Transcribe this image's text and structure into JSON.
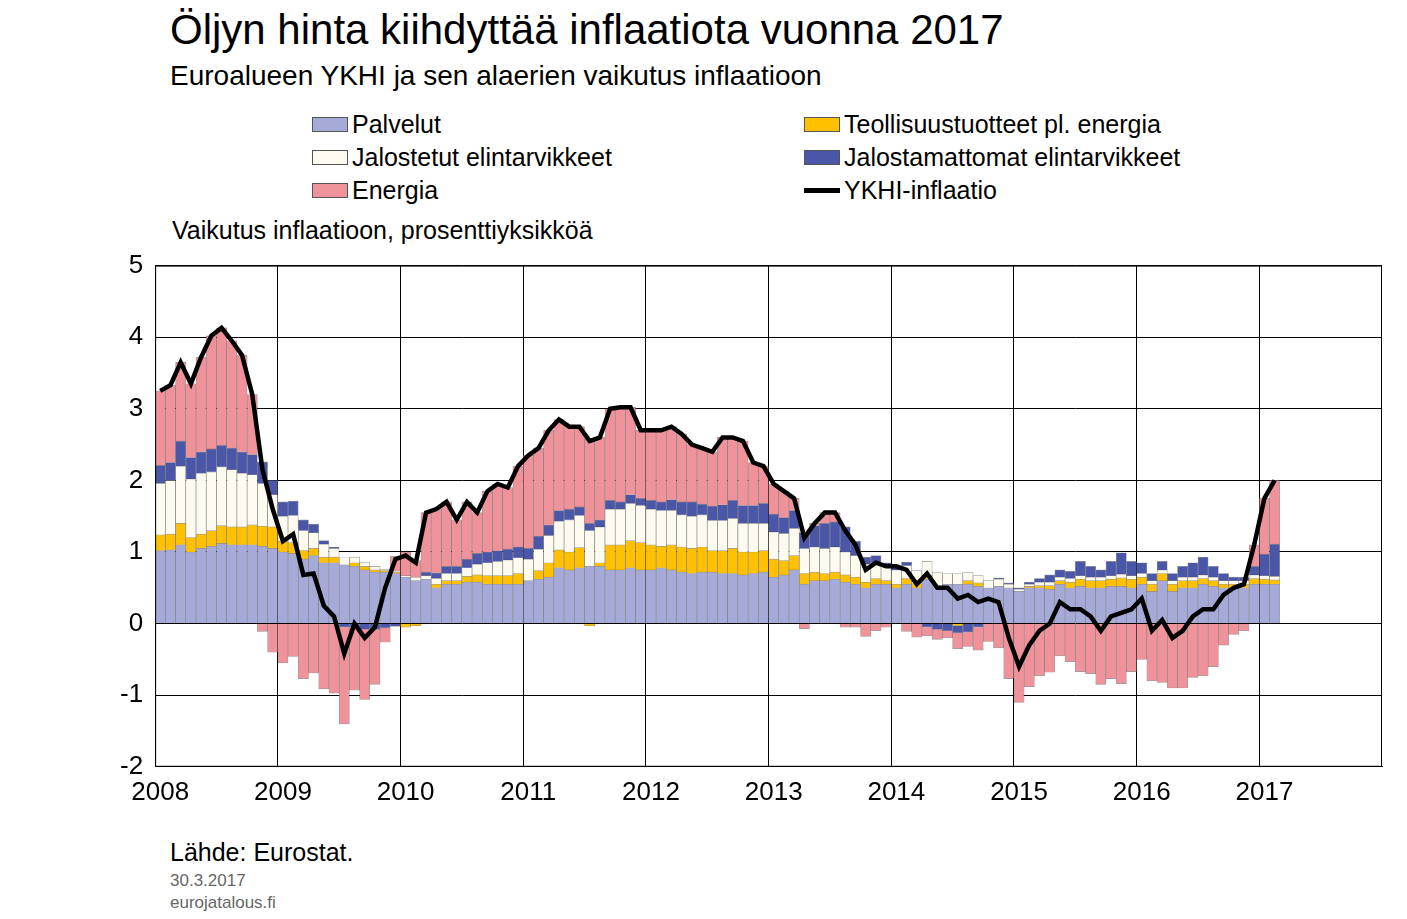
{
  "chart_data": {
    "type": "bar",
    "title": "Öljyn hinta kiihdyttää inflaatiota vuonna 2017",
    "subtitle": "Euroalueen YKHI ja sen alaerien vaikutus inflaatioon",
    "y_label": "Vaikutus inflaatioon, prosenttiyksikköä",
    "source": "Lähde: Eurostat.",
    "notes": [
      "30.3.2017",
      "eurojatalous.fi"
    ],
    "stacked": true,
    "grid": true,
    "legend": "top",
    "ylim": [
      -2,
      5
    ],
    "yticks": [
      -2,
      -1,
      0,
      1,
      2,
      3,
      4,
      5
    ],
    "categories": [
      "2008",
      null,
      null,
      null,
      null,
      null,
      null,
      null,
      null,
      null,
      null,
      null,
      "2009",
      null,
      null,
      null,
      null,
      null,
      null,
      null,
      null,
      null,
      null,
      null,
      "2010",
      null,
      null,
      null,
      null,
      null,
      null,
      null,
      null,
      null,
      null,
      null,
      "2011",
      null,
      null,
      null,
      null,
      null,
      null,
      null,
      null,
      null,
      null,
      null,
      "2012",
      null,
      null,
      null,
      null,
      null,
      null,
      null,
      null,
      null,
      null,
      null,
      "2013",
      null,
      null,
      null,
      null,
      null,
      null,
      null,
      null,
      null,
      null,
      null,
      "2014",
      null,
      null,
      null,
      null,
      null,
      null,
      null,
      null,
      null,
      null,
      null,
      "2015",
      null,
      null,
      null,
      null,
      null,
      null,
      null,
      null,
      null,
      null,
      null,
      "2016",
      null,
      null,
      null,
      null,
      null,
      null,
      null,
      null,
      null,
      null,
      null,
      "2017",
      null,
      null,
      null,
      null,
      null,
      null,
      null,
      null,
      null,
      null,
      null
    ],
    "series": [
      {
        "name": "Palvelut",
        "type": "bar",
        "color": "#a6aad8",
        "values": [
          1.02,
          1.03,
          1.1,
          1.0,
          1.05,
          1.08,
          1.12,
          1.1,
          1.1,
          1.1,
          1.08,
          1.05,
          1.0,
          0.98,
          0.9,
          0.95,
          0.85,
          0.85,
          0.82,
          0.8,
          0.75,
          0.72,
          0.72,
          0.7,
          0.65,
          0.6,
          0.62,
          0.5,
          0.55,
          0.55,
          0.58,
          0.58,
          0.55,
          0.55,
          0.55,
          0.55,
          0.6,
          0.62,
          0.65,
          0.78,
          0.75,
          0.78,
          0.8,
          0.8,
          0.75,
          0.75,
          0.78,
          0.75,
          0.75,
          0.78,
          0.75,
          0.72,
          0.7,
          0.72,
          0.72,
          0.7,
          0.7,
          0.68,
          0.7,
          0.72,
          0.65,
          0.68,
          0.75,
          0.55,
          0.6,
          0.6,
          0.62,
          0.58,
          0.55,
          0.5,
          0.55,
          0.55,
          0.5,
          0.55,
          0.5,
          0.62,
          0.52,
          0.55,
          0.55,
          0.55,
          0.52,
          0.5,
          0.52,
          0.5,
          0.45,
          0.5,
          0.5,
          0.48,
          0.55,
          0.5,
          0.52,
          0.5,
          0.5,
          0.52,
          0.52,
          0.5,
          0.55,
          0.45,
          0.6,
          0.45,
          0.5,
          0.5,
          0.55,
          0.52,
          0.5,
          0.5,
          0.5,
          0.55,
          0.55,
          0.55,
          null,
          null,
          null,
          null,
          null,
          null,
          null,
          null,
          null,
          null
        ]
      },
      {
        "name": "Teollisuustuotteet pl. energia",
        "type": "bar",
        "color": "#ffc000",
        "values": [
          0.22,
          0.22,
          0.3,
          0.2,
          0.2,
          0.22,
          0.25,
          0.25,
          0.25,
          0.28,
          0.28,
          0.3,
          0.15,
          0.15,
          0.12,
          0.1,
          0.08,
          0.08,
          0.0,
          0.05,
          0.05,
          0.03,
          0.02,
          0.02,
          -0.05,
          -0.03,
          0.0,
          0.05,
          0.05,
          0.05,
          0.08,
          0.1,
          0.12,
          0.12,
          0.12,
          0.15,
          0.0,
          0.12,
          0.2,
          0.25,
          0.25,
          0.28,
          -0.03,
          0.05,
          0.35,
          0.35,
          0.38,
          0.38,
          0.35,
          0.3,
          0.35,
          0.35,
          0.35,
          0.35,
          0.3,
          0.32,
          0.35,
          0.32,
          0.3,
          0.3,
          0.25,
          0.2,
          0.2,
          0.15,
          0.12,
          0.1,
          0.1,
          0.1,
          0.1,
          0.08,
          0.08,
          0.05,
          0.05,
          0.08,
          0.06,
          0.05,
          0.0,
          0.0,
          -0.03,
          0.05,
          0.05,
          0.0,
          0.0,
          0.0,
          0.0,
          0.02,
          0.03,
          0.05,
          0.05,
          0.08,
          0.1,
          0.1,
          0.1,
          0.1,
          0.12,
          0.12,
          0.1,
          0.1,
          0.1,
          0.1,
          0.1,
          0.1,
          0.08,
          0.08,
          0.05,
          0.05,
          0.05,
          0.08,
          0.07,
          0.06,
          null,
          null,
          null,
          null,
          null,
          null,
          null,
          null,
          null,
          null
        ]
      },
      {
        "name": "Jalostetut elintarvikkeet",
        "type": "bar",
        "color": "#fdfbf0",
        "values": [
          0.72,
          0.75,
          0.8,
          0.82,
          0.85,
          0.82,
          0.82,
          0.8,
          0.75,
          0.7,
          0.6,
          0.45,
          0.35,
          0.38,
          0.28,
          0.22,
          0.18,
          0.12,
          0.1,
          0.08,
          0.06,
          0.05,
          0.02,
          0.01,
          0.02,
          0.05,
          0.05,
          0.08,
          0.1,
          0.1,
          0.12,
          0.15,
          0.18,
          0.2,
          0.22,
          0.22,
          0.3,
          0.3,
          0.38,
          0.4,
          0.45,
          0.45,
          0.5,
          0.5,
          0.5,
          0.5,
          0.52,
          0.52,
          0.5,
          0.5,
          0.48,
          0.45,
          0.45,
          0.45,
          0.42,
          0.42,
          0.42,
          0.4,
          0.4,
          0.38,
          0.38,
          0.38,
          0.38,
          0.35,
          0.35,
          0.35,
          0.35,
          0.32,
          0.3,
          0.25,
          0.22,
          0.2,
          0.2,
          0.18,
          0.18,
          0.2,
          0.2,
          0.15,
          0.15,
          0.12,
          0.1,
          0.1,
          0.1,
          0.05,
          0.03,
          0.03,
          0.05,
          0.05,
          0.05,
          0.05,
          0.05,
          0.05,
          0.05,
          0.05,
          0.05,
          0.05,
          0.05,
          0.05,
          0.05,
          0.05,
          0.05,
          0.05,
          0.05,
          0.05,
          0.05,
          0.05,
          0.05,
          0.05,
          0.05,
          0.05,
          null,
          null,
          null,
          null,
          null,
          null,
          null,
          null,
          null,
          null
        ]
      },
      {
        "name": "Jalostamattomat elintarvikkeet",
        "type": "bar",
        "color": "#4a57a8",
        "values": [
          0.25,
          0.25,
          0.35,
          0.3,
          0.3,
          0.32,
          0.3,
          0.3,
          0.3,
          0.28,
          0.3,
          0.2,
          0.2,
          0.2,
          0.15,
          0.12,
          0.05,
          0.02,
          -0.05,
          -0.05,
          -0.08,
          -0.08,
          -0.06,
          -0.04,
          0.0,
          0.0,
          0.05,
          0.08,
          0.1,
          0.1,
          0.12,
          0.15,
          0.15,
          0.15,
          0.15,
          0.15,
          0.15,
          0.18,
          0.15,
          0.15,
          0.15,
          0.12,
          0.1,
          0.1,
          0.12,
          0.1,
          0.12,
          0.1,
          0.12,
          0.12,
          0.15,
          0.18,
          0.2,
          0.15,
          0.2,
          0.22,
          0.25,
          0.25,
          0.25,
          0.28,
          0.25,
          0.22,
          0.25,
          0.22,
          0.3,
          0.35,
          0.35,
          0.35,
          0.2,
          0.1,
          0.1,
          0.05,
          0.05,
          0.05,
          0.0,
          -0.05,
          -0.08,
          -0.1,
          -0.1,
          -0.12,
          -0.05,
          0.0,
          0.02,
          0.02,
          0.02,
          0.03,
          0.05,
          0.1,
          0.1,
          0.1,
          0.2,
          0.15,
          0.1,
          0.2,
          0.3,
          0.2,
          0.15,
          0.1,
          0.12,
          0.1,
          0.15,
          0.2,
          0.25,
          0.15,
          0.1,
          0.05,
          0.05,
          0.12,
          0.3,
          0.45,
          null,
          null,
          null,
          null,
          null,
          null,
          null,
          null,
          null,
          null
        ]
      },
      {
        "name": "Energia",
        "type": "bar",
        "color": "#f0929a",
        "values": [
          1.04,
          1.08,
          1.1,
          1.03,
          1.32,
          1.58,
          1.64,
          1.5,
          1.35,
          0.84,
          -0.11,
          -0.4,
          -0.55,
          -0.46,
          -0.77,
          -0.69,
          -0.91,
          -0.97,
          -1.35,
          -0.88,
          -0.98,
          -0.77,
          -0.2,
          0.21,
          0.33,
          0.23,
          0.83,
          0.89,
          0.9,
          0.65,
          0.8,
          0.57,
          0.85,
          0.93,
          0.86,
          1.13,
          1.3,
          1.23,
          1.32,
          1.27,
          1.15,
          1.12,
          1.18,
          1.15,
          1.28,
          1.32,
          1.22,
          0.95,
          0.98,
          1.0,
          1.02,
          0.95,
          0.8,
          0.78,
          0.76,
          0.94,
          0.88,
          0.9,
          0.6,
          0.52,
          0.42,
          0.37,
          0.17,
          -0.07,
          0.03,
          0.15,
          0.13,
          -0.05,
          -0.05,
          -0.18,
          -0.1,
          -0.05,
          0.0,
          -0.11,
          -0.19,
          -0.12,
          -0.14,
          -0.1,
          -0.22,
          -0.2,
          -0.32,
          -0.25,
          -0.34,
          -0.77,
          -1.1,
          -0.88,
          -0.73,
          -0.68,
          -0.45,
          -0.53,
          -0.67,
          -0.7,
          -0.85,
          -0.77,
          -0.84,
          -0.67,
          -0.5,
          -0.8,
          -0.82,
          -0.9,
          -0.9,
          -0.75,
          -0.73,
          -0.6,
          -0.3,
          -0.15,
          -0.1,
          0.3,
          0.78,
          0.89,
          null,
          null,
          null,
          null,
          null,
          null,
          null,
          null,
          null,
          null
        ]
      },
      {
        "name": "YKHI-inflaatio",
        "type": "line",
        "color": "#000000",
        "values": [
          3.25,
          3.33,
          3.65,
          3.35,
          3.72,
          4.02,
          4.13,
          3.95,
          3.75,
          3.2,
          2.15,
          1.6,
          1.15,
          1.25,
          0.68,
          0.7,
          0.25,
          0.1,
          -0.42,
          0.0,
          -0.2,
          -0.05,
          0.5,
          0.9,
          0.95,
          0.85,
          1.55,
          1.6,
          1.7,
          1.45,
          1.7,
          1.55,
          1.85,
          1.95,
          1.9,
          2.2,
          2.35,
          2.45,
          2.7,
          2.85,
          2.75,
          2.75,
          2.55,
          2.6,
          3.0,
          3.02,
          3.02,
          2.7,
          2.7,
          2.7,
          2.75,
          2.65,
          2.5,
          2.45,
          2.4,
          2.6,
          2.6,
          2.55,
          2.25,
          2.2,
          1.95,
          1.85,
          1.75,
          1.2,
          1.4,
          1.55,
          1.55,
          1.3,
          1.1,
          0.75,
          0.85,
          0.8,
          0.8,
          0.75,
          0.55,
          0.7,
          0.5,
          0.5,
          0.35,
          0.4,
          0.3,
          0.35,
          0.3,
          -0.2,
          -0.6,
          -0.3,
          -0.1,
          0.0,
          0.3,
          0.2,
          0.2,
          0.1,
          -0.1,
          0.1,
          0.15,
          0.2,
          0.35,
          -0.1,
          0.05,
          -0.2,
          -0.1,
          0.1,
          0.2,
          0.2,
          0.4,
          0.5,
          0.55,
          1.1,
          1.75,
          2.0,
          null,
          null,
          null,
          null,
          null,
          null,
          null,
          null,
          null,
          null
        ]
      }
    ]
  }
}
